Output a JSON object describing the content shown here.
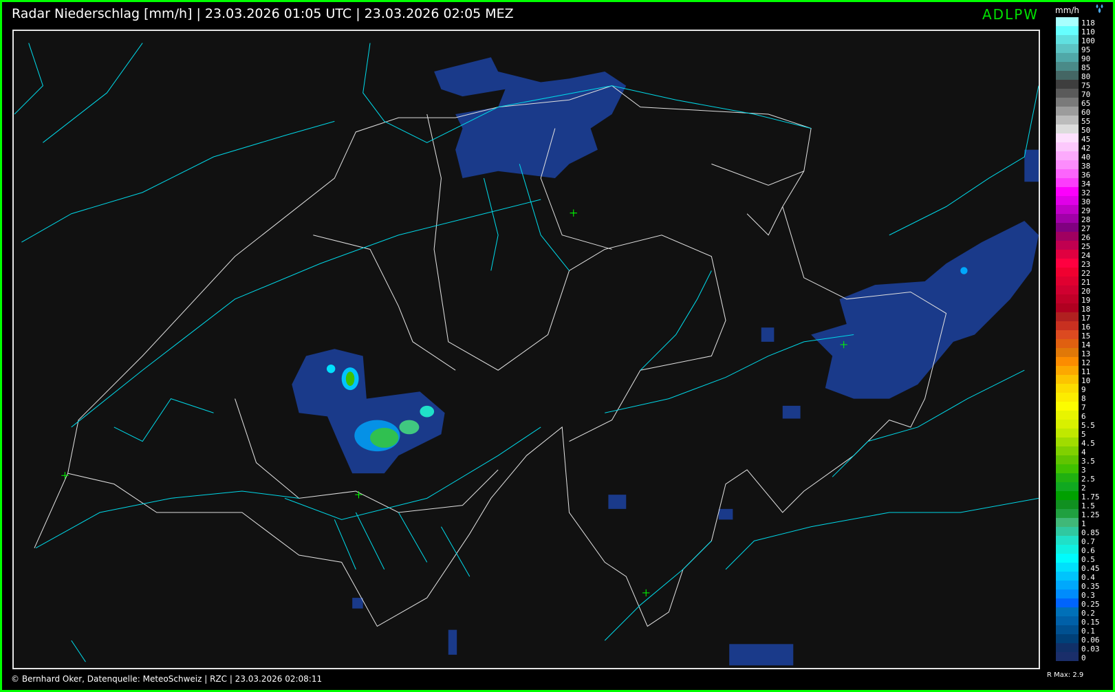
{
  "header": {
    "title": "Radar Niederschlag [mm/h] | 23.03.2026 01:05 UTC | 23.03.2026 02:05 MEZ",
    "station_code": "ADLPW",
    "station_color": "#00e000"
  },
  "legend": {
    "unit": "mm/h",
    "icon": "water-drops-icon",
    "labels": [
      "118",
      "110",
      "100",
      "95",
      "90",
      "85",
      "80",
      "75",
      "70",
      "65",
      "60",
      "55",
      "50",
      "45",
      "42",
      "40",
      "38",
      "36",
      "34",
      "32",
      "30",
      "29",
      "28",
      "27",
      "26",
      "25",
      "24",
      "23",
      "22",
      "21",
      "20",
      "19",
      "18",
      "17",
      "16",
      "15",
      "14",
      "13",
      "12",
      "11",
      "10",
      "9",
      "8",
      "7",
      "6",
      "5.5",
      "5",
      "4.5",
      "4",
      "3.5",
      "3",
      "2.5",
      "2",
      "1.75",
      "1.5",
      "1.25",
      "1",
      "0.85",
      "0.7",
      "0.6",
      "0.5",
      "0.45",
      "0.4",
      "0.35",
      "0.3",
      "0.25",
      "0.2",
      "0.15",
      "0.1",
      "0.06",
      "0.03",
      "0"
    ],
    "colors": [
      "#a8fffe",
      "#66ffff",
      "#60e0e0",
      "#5cc4c4",
      "#50a8a8",
      "#4a8a88",
      "#446664",
      "#3e3e3e",
      "#5a5a5a",
      "#7a7a7a",
      "#9c9c9c",
      "#bcbcbc",
      "#dcdcdc",
      "#fde0fd",
      "#fcc8fc",
      "#fcaafc",
      "#fc8cfc",
      "#fc64fc",
      "#fc3cfc",
      "#fc00fc",
      "#e000e8",
      "#c000c8",
      "#a000a8",
      "#800080",
      "#a00060",
      "#c00050",
      "#e00040",
      "#ff0040",
      "#f00030",
      "#e00030",
      "#d00030",
      "#c00028",
      "#b00020",
      "#b02020",
      "#c83020",
      "#dc4a20",
      "#e06010",
      "#e07808",
      "#fc8c00",
      "#fca800",
      "#fcc400",
      "#fcdc00",
      "#fcec00",
      "#fcfc00",
      "#e8f400",
      "#d8f000",
      "#c0e800",
      "#a0dc00",
      "#80d000",
      "#60c400",
      "#40c000",
      "#20b010",
      "#10a820",
      "#00a000",
      "#109020",
      "#20a040",
      "#40b878",
      "#30c8a0",
      "#20e0c8",
      "#10f0e0",
      "#00fcfc",
      "#00e0fc",
      "#00c4fc",
      "#00a8fc",
      "#008cfc",
      "#0064fc",
      "#0070b8",
      "#0060a8",
      "#005090",
      "#004078",
      "#103068",
      "#1a2e6a"
    ],
    "r_max": "R Max: 2.9"
  },
  "footer": {
    "text": "© Bernhard Oker, Datenquelle: MeteoSchweiz | RZC | 23.03.2026 02:08:11"
  },
  "map": {
    "border_color": "#e0e0e0",
    "river_color": "#00d8e8",
    "marker_color": "#00ff00",
    "precip_light": "#1a3a8a"
  }
}
